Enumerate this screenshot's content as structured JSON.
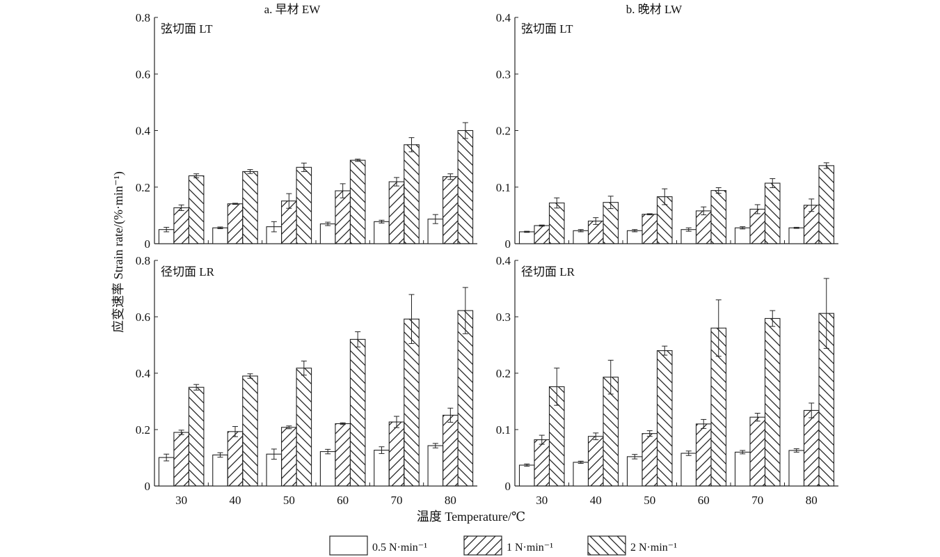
{
  "chart_data": {
    "type": "bar",
    "categories": [
      "30",
      "40",
      "50",
      "60",
      "70",
      "80"
    ],
    "xlabel": "温度 Temperature/℃",
    "ylabel": "应变速率 Strain rate/(%·min⁻¹)",
    "legend": {
      "placement": "bottom-center",
      "entries": [
        "0.5 N·min⁻¹",
        "1 N·min⁻¹",
        "2 N·min⁻¹"
      ]
    },
    "colors": {
      "bar_fill": "#ffffff",
      "bar_stroke": "#222222",
      "hatch": "#222222"
    },
    "panels": [
      {
        "id": "ew-lt",
        "column_title": "a. 早材 EW",
        "section_label": "弦切面 LT",
        "ylim": [
          0,
          0.8
        ],
        "yticks": [
          "0",
          "0.2",
          "0.4",
          "0.6",
          "0.8"
        ],
        "series": [
          {
            "name": "0.5 N·min⁻¹",
            "values": [
              0.05,
              0.056,
              0.06,
              0.07,
              0.078,
              0.087
            ],
            "errors": [
              0.008,
              0.003,
              0.018,
              0.006,
              0.005,
              0.016
            ]
          },
          {
            "name": "1 N·min⁻¹",
            "values": [
              0.127,
              0.141,
              0.151,
              0.187,
              0.219,
              0.237
            ],
            "errors": [
              0.01,
              0.002,
              0.026,
              0.025,
              0.015,
              0.01
            ]
          },
          {
            "name": "2 N·min⁻¹",
            "values": [
              0.24,
              0.255,
              0.27,
              0.295,
              0.35,
              0.4
            ],
            "errors": [
              0.007,
              0.007,
              0.015,
              0.004,
              0.025,
              0.028
            ]
          }
        ]
      },
      {
        "id": "lw-lt",
        "column_title": "b. 晚材 LW",
        "section_label": "弦切面 LT",
        "ylim": [
          0,
          0.4
        ],
        "yticks": [
          "0",
          "0.1",
          "0.2",
          "0.3",
          "0.4"
        ],
        "series": [
          {
            "name": "0.5 N·min⁻¹",
            "values": [
              0.021,
              0.023,
              0.023,
              0.025,
              0.028,
              0.028
            ],
            "errors": [
              0.001,
              0.002,
              0.002,
              0.003,
              0.002,
              0.001
            ]
          },
          {
            "name": "1 N·min⁻¹",
            "values": [
              0.032,
              0.04,
              0.052,
              0.058,
              0.061,
              0.068
            ],
            "errors": [
              0.001,
              0.006,
              0.001,
              0.007,
              0.008,
              0.011
            ]
          },
          {
            "name": "2 N·min⁻¹",
            "values": [
              0.072,
              0.073,
              0.083,
              0.094,
              0.107,
              0.138
            ],
            "errors": [
              0.009,
              0.011,
              0.014,
              0.005,
              0.008,
              0.005
            ]
          }
        ]
      },
      {
        "id": "ew-lr",
        "column_title": "",
        "section_label": "径切面 LR",
        "ylim": [
          0,
          0.8
        ],
        "yticks": [
          "0",
          "0.2",
          "0.4",
          "0.6",
          "0.8"
        ],
        "series": [
          {
            "name": "0.5 N·min⁻¹",
            "values": [
              0.101,
              0.11,
              0.113,
              0.122,
              0.127,
              0.143
            ],
            "errors": [
              0.012,
              0.008,
              0.018,
              0.008,
              0.012,
              0.008
            ]
          },
          {
            "name": "1 N·min⁻¹",
            "values": [
              0.19,
              0.193,
              0.208,
              0.221,
              0.227,
              0.251
            ],
            "errors": [
              0.008,
              0.018,
              0.005,
              0.003,
              0.02,
              0.025
            ]
          },
          {
            "name": "2 N·min⁻¹",
            "values": [
              0.35,
              0.39,
              0.418,
              0.52,
              0.592,
              0.622
            ],
            "errors": [
              0.01,
              0.008,
              0.025,
              0.027,
              0.087,
              0.082
            ]
          }
        ]
      },
      {
        "id": "lw-lr",
        "column_title": "",
        "section_label": "径切面 LR",
        "ylim": [
          0,
          0.4
        ],
        "yticks": [
          "0",
          "0.1",
          "0.2",
          "0.3",
          "0.4"
        ],
        "series": [
          {
            "name": "0.5 N·min⁻¹",
            "values": [
              0.037,
              0.042,
              0.052,
              0.058,
              0.06,
              0.063
            ],
            "errors": [
              0.002,
              0.002,
              0.004,
              0.004,
              0.003,
              0.003
            ]
          },
          {
            "name": "1 N·min⁻¹",
            "values": [
              0.082,
              0.088,
              0.093,
              0.11,
              0.122,
              0.134
            ],
            "errors": [
              0.008,
              0.006,
              0.005,
              0.008,
              0.007,
              0.013
            ]
          },
          {
            "name": "2 N·min⁻¹",
            "values": [
              0.176,
              0.193,
              0.24,
              0.28,
              0.297,
              0.306
            ],
            "errors": [
              0.033,
              0.03,
              0.008,
              0.05,
              0.014,
              0.062
            ]
          }
        ]
      }
    ]
  }
}
